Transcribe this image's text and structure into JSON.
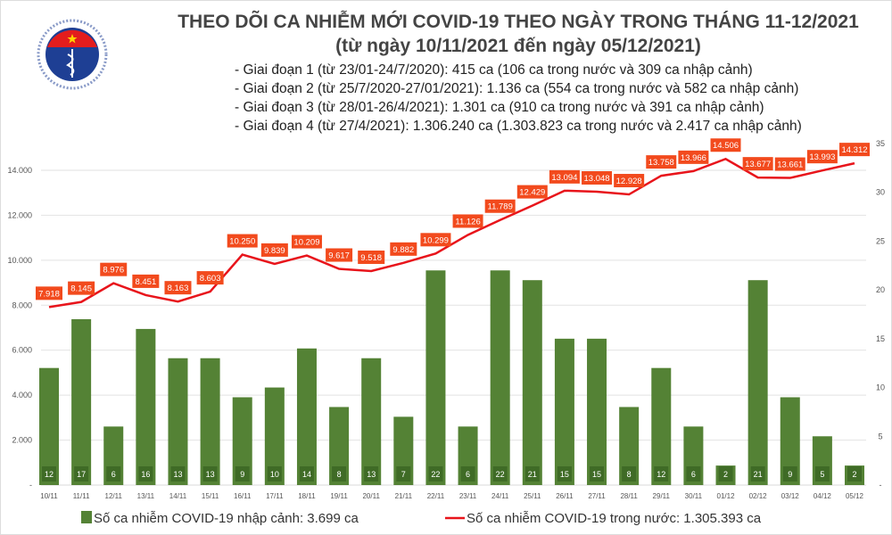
{
  "header": {
    "title": "THEO DÕI CA NHIỄM MỚI COVID-19 THEO NGÀY TRONG THÁNG 11-12/2021",
    "subtitle": "(từ ngày 10/11/2021 đến ngày 05/12/2021)",
    "logo_text": [
      "BỘ Y TẾ",
      "MINISTRY OF HEALTH"
    ],
    "notes": [
      "- Giai đoạn 1 (từ 23/01-24/7/2020): 415 ca (106 ca trong nước và 309 ca nhập cảnh)",
      "- Giai đoạn 2 (từ 25/7/2020-27/01/2021): 1.136 ca (554 ca trong nước và 582 ca nhập cảnh)",
      "- Giai đoạn 3 (từ 28/01-26/4/2021): 1.301 ca (910 ca trong nước và 391 ca nhập cảnh)",
      "- Giai đoạn 4 (từ 27/4/2021): 1.306.240 ca (1.303.823 ca trong nước và 2.417 ca nhập cảnh)"
    ]
  },
  "chart_data": {
    "type": "bar+line",
    "categories": [
      "10/11",
      "11/11",
      "12/11",
      "13/11",
      "14/11",
      "15/11",
      "16/11",
      "17/11",
      "18/11",
      "19/11",
      "20/11",
      "21/11",
      "22/11",
      "23/11",
      "24/11",
      "25/11",
      "26/11",
      "27/11",
      "28/11",
      "29/11",
      "30/11",
      "01/12",
      "02/12",
      "03/12",
      "04/12",
      "05/12"
    ],
    "series": [
      {
        "name": "Số ca nhiễm COVID-19 nhập cảnh: 3.699 ca",
        "type": "bar",
        "axis": "right",
        "color": "#548235",
        "label_color": "#3f6b26",
        "values": [
          12,
          17,
          6,
          16,
          13,
          13,
          9,
          10,
          14,
          8,
          13,
          7,
          22,
          6,
          22,
          21,
          15,
          15,
          8,
          12,
          6,
          2,
          21,
          9,
          5,
          2
        ]
      },
      {
        "name": "Số ca nhiễm COVID-19 trong nước: 1.305.393 ca",
        "type": "line",
        "axis": "left",
        "color": "#e8141b",
        "label_bg": "#f24a1d",
        "values": [
          7918,
          8145,
          8976,
          8451,
          8163,
          8603,
          10250,
          9839,
          10209,
          9617,
          9518,
          9882,
          10299,
          11126,
          11789,
          12429,
          13094,
          13048,
          12928,
          13758,
          13966,
          14506,
          13677,
          13661,
          13993,
          14312
        ],
        "labels": [
          "7.918",
          "8.145",
          "8.976",
          "8.451",
          "8.163",
          "8.603",
          "10.250",
          "9.839",
          "10.209",
          "9.617",
          "9.518",
          "9.882",
          "10.299",
          "11.126",
          "11.789",
          "12.429",
          "13.094",
          "13.048",
          "12.928",
          "13.758",
          "13.966",
          "14.506",
          "13.677",
          "13.661",
          "13.993",
          "14.312"
        ]
      }
    ],
    "left_axis": {
      "range": [
        0,
        14000
      ],
      "ticks": [
        "-",
        "2.000",
        "4.000",
        "6.000",
        "8.000",
        "10.000",
        "12.000",
        "14.000"
      ]
    },
    "right_axis": {
      "range": [
        0,
        35
      ],
      "ticks": [
        "-",
        "5",
        "10",
        "15",
        "20",
        "25",
        "30",
        "35"
      ]
    },
    "grid": true,
    "legend_position": "bottom"
  }
}
